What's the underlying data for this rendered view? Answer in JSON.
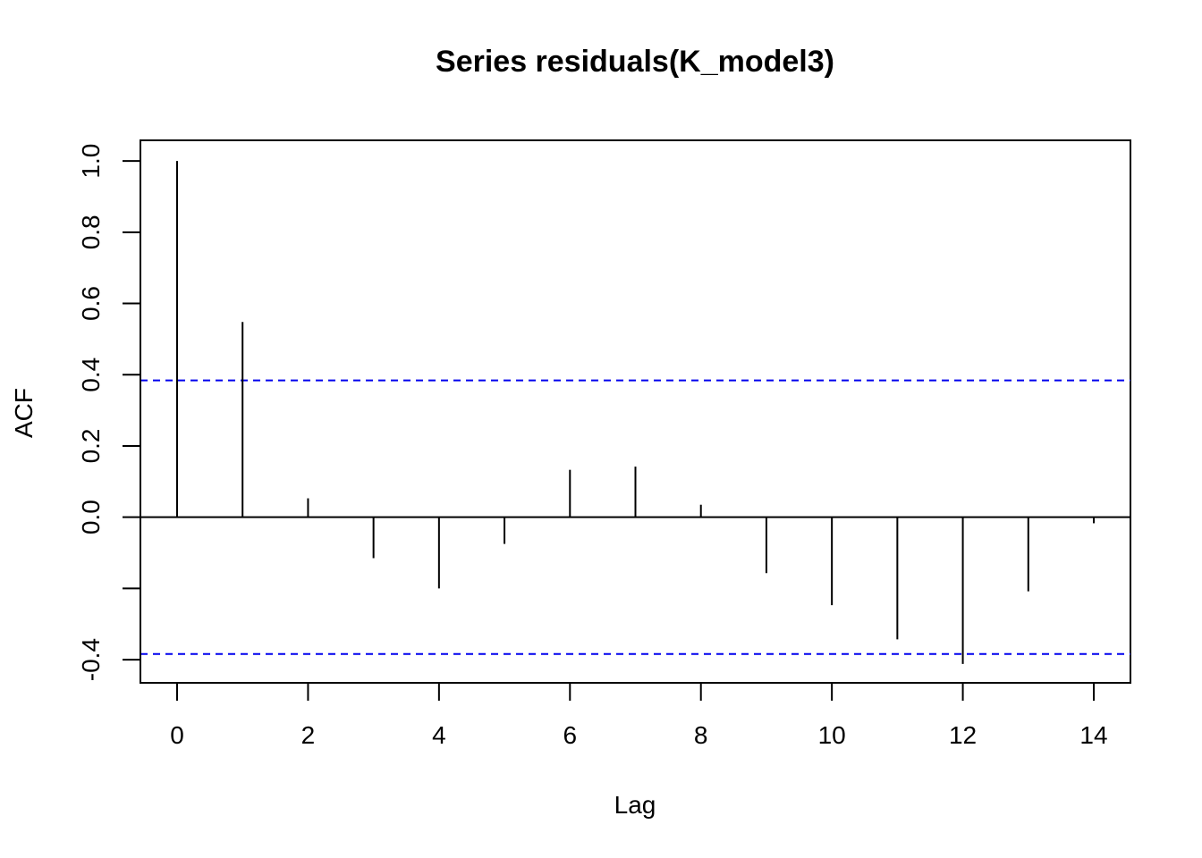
{
  "chart_data": {
    "type": "bar",
    "title": "Series  residuals(K_model3)",
    "xlabel": "Lag",
    "ylabel": "ACF",
    "x": [
      0,
      1,
      2,
      3,
      4,
      5,
      6,
      7,
      8,
      9,
      10,
      11,
      12,
      13,
      14
    ],
    "values": [
      1.0,
      0.548,
      0.053,
      -0.115,
      -0.2,
      -0.075,
      0.133,
      0.142,
      0.035,
      -0.157,
      -0.247,
      -0.343,
      -0.412,
      -0.208,
      -0.017
    ],
    "confidence_bound": 0.384,
    "xlim": [
      -0.56,
      14.56
    ],
    "ylim": [
      -0.465,
      1.058
    ],
    "xticks": [
      0,
      2,
      4,
      6,
      8,
      10,
      12,
      14
    ],
    "yticks": [
      -0.4,
      -0.2,
      0.0,
      0.2,
      0.4,
      0.6,
      0.8,
      1.0
    ],
    "ytick_labels": [
      "-0.4",
      "",
      "0.0",
      "0.2",
      "0.4",
      "0.6",
      "0.8",
      "1.0"
    ],
    "colors": {
      "spikes": "#000000",
      "bounds": "#0000ee",
      "zero_line": "#000000"
    },
    "grid": false
  }
}
